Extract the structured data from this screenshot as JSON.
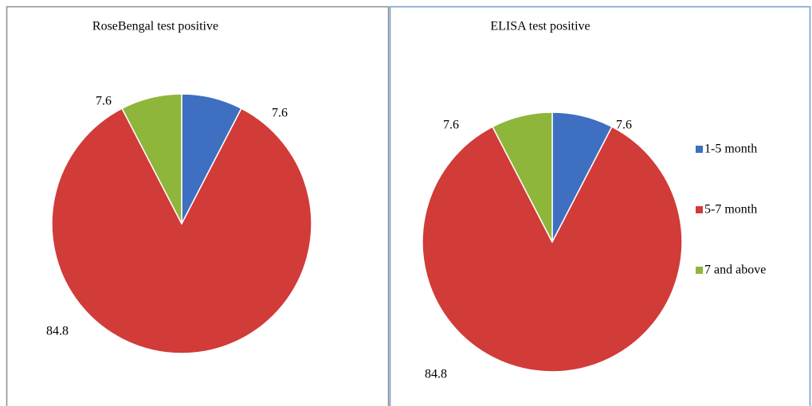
{
  "chart_data": [
    {
      "type": "pie",
      "title": "RoseBengal test positive",
      "categories": [
        "1-5 month",
        "5-7 month",
        "7 and above"
      ],
      "values": [
        7.6,
        84.8,
        7.6
      ],
      "colors": [
        "#3e6fc1",
        "#d13b38",
        "#8db63b"
      ]
    },
    {
      "type": "pie",
      "title": "ELISA test positive",
      "categories": [
        "1-5 month",
        "5-7 month",
        "7 and above"
      ],
      "values": [
        7.6,
        84.8,
        7.6
      ],
      "colors": [
        "#3e6fc1",
        "#d13b38",
        "#8db63b"
      ],
      "legend": "right"
    }
  ]
}
